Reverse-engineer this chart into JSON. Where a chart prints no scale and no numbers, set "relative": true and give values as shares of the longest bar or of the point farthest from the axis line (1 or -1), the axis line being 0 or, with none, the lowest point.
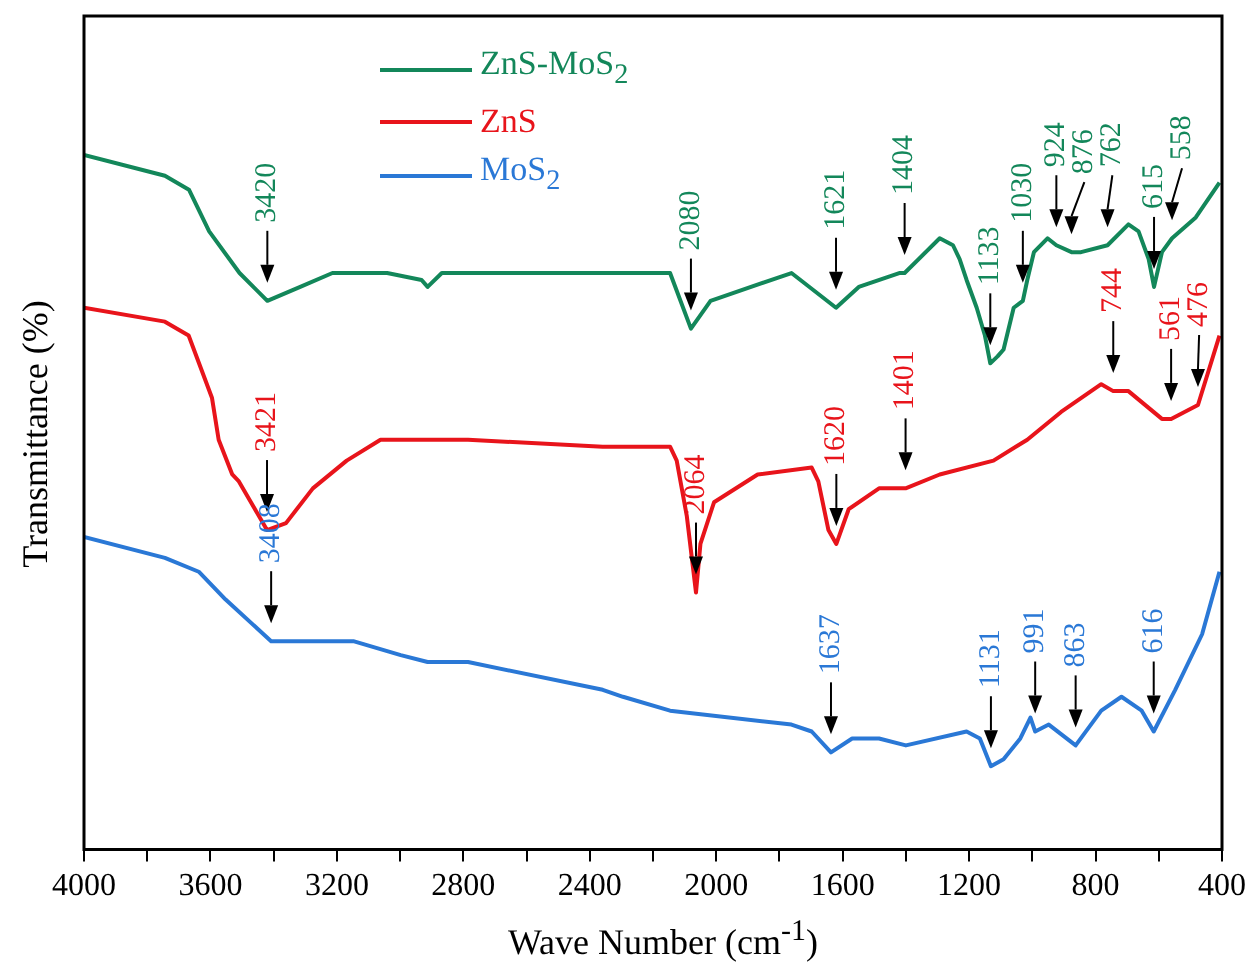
{
  "chart_data": {
    "type": "line",
    "relative": true,
    "xlabel": "Wave Number (cm$^{-1}$)",
    "ylabel": "Transmittance (%)",
    "legend": "top",
    "grid": false,
    "marker": "none",
    "line_style": "solid",
    "xlim": [
      4000,
      400
    ],
    "xticks": [
      4000,
      {
        "value": 3800,
        "label": null
      },
      3600,
      {
        "value": 3400,
        "label": null
      },
      3200,
      {
        "value": 3000,
        "label": null
      },
      2800,
      {
        "value": 2600,
        "label": null
      },
      2400,
      {
        "value": 2200,
        "label": null
      },
      2000,
      {
        "value": 1800,
        "label": null
      },
      1600,
      {
        "value": 1400,
        "label": null
      },
      1200,
      {
        "value": 1000,
        "label": null
      },
      800,
      {
        "value": 600,
        "label": null
      },
      400
    ],
    "series": [
      {
        "name": "ZnS-MoS$_{2}$",
        "color": "#13875a",
        "x": [
          4000,
          3744,
          3668,
          3604,
          3508,
          3420,
          3316,
          3214,
          3041,
          2932,
          2913,
          2868,
          2785,
          2357,
          2146,
          2080,
          2018,
          1762,
          1621,
          1549,
          1421,
          1404,
          1293,
          1251,
          1230,
          1208,
          1176,
          1150,
          1133,
          1110,
          1091,
          1059,
          1030,
          1016,
          995,
          952,
          924,
          876,
          846,
          762,
          696,
          664,
          632,
          615,
          590,
          558,
          483,
          408
        ],
        "values": [
          1.0,
          0.97,
          0.95,
          0.89,
          0.83,
          0.79,
          0.81,
          0.83,
          0.83,
          0.82,
          0.81,
          0.83,
          0.83,
          0.83,
          0.83,
          0.75,
          0.79,
          0.83,
          0.78,
          0.81,
          0.83,
          0.83,
          0.88,
          0.87,
          0.85,
          0.82,
          0.78,
          0.74,
          0.7,
          0.71,
          0.72,
          0.78,
          0.79,
          0.82,
          0.86,
          0.88,
          0.87,
          0.86,
          0.86,
          0.87,
          0.9,
          0.89,
          0.85,
          0.81,
          0.86,
          0.88,
          0.91,
          0.96
        ]
      },
      {
        "name": "ZnS",
        "color": "#e8141b",
        "x": [
          4000,
          3744,
          3669,
          3595,
          3574,
          3531,
          3510,
          3421,
          3361,
          3276,
          3169,
          3062,
          2785,
          2359,
          2295,
          2146,
          2125,
          2093,
          2064,
          2050,
          2007,
          1869,
          1698,
          1677,
          1645,
          1620,
          1581,
          1485,
          1401,
          1293,
          1123,
          1016,
          909,
          782,
          744,
          696,
          590,
          561,
          476,
          408
        ],
        "values": [
          0.78,
          0.76,
          0.74,
          0.65,
          0.59,
          0.54,
          0.53,
          0.46,
          0.47,
          0.52,
          0.56,
          0.59,
          0.59,
          0.58,
          0.58,
          0.58,
          0.56,
          0.48,
          0.37,
          0.44,
          0.5,
          0.54,
          0.55,
          0.53,
          0.46,
          0.44,
          0.49,
          0.52,
          0.52,
          0.54,
          0.56,
          0.59,
          0.63,
          0.67,
          0.66,
          0.66,
          0.62,
          0.62,
          0.64,
          0.74
        ]
      },
      {
        "name": "MoS$_{2}$",
        "color": "#2a78d6",
        "x": [
          4000,
          3744,
          3637,
          3552,
          3408,
          3361,
          3148,
          2998,
          2913,
          2785,
          2359,
          2295,
          2146,
          1762,
          1698,
          1637,
          1570,
          1485,
          1400,
          1208,
          1166,
          1131,
          1091,
          1038,
          1006,
          991,
          948,
          863,
          782,
          718,
          654,
          616,
          548,
          463,
          408
        ],
        "values": [
          0.45,
          0.42,
          0.4,
          0.36,
          0.3,
          0.3,
          0.3,
          0.28,
          0.27,
          0.27,
          0.23,
          0.22,
          0.2,
          0.18,
          0.17,
          0.14,
          0.16,
          0.16,
          0.15,
          0.17,
          0.16,
          0.12,
          0.13,
          0.16,
          0.19,
          0.17,
          0.18,
          0.15,
          0.2,
          0.22,
          0.2,
          0.17,
          0.23,
          0.31,
          0.4
        ]
      }
    ],
    "annotations": [
      {
        "text": "3420",
        "x": 3420,
        "y": 0.79
      },
      {
        "text": "2080",
        "x": 2080,
        "y": 0.75
      },
      {
        "text": "1621",
        "x": 1621,
        "y": 0.78
      },
      {
        "text": "1404",
        "x": 1404,
        "y": 0.83
      },
      {
        "text": "1133",
        "x": 1133,
        "y": 0.7
      },
      {
        "text": "1030",
        "x": 1030,
        "y": 0.79
      },
      {
        "text": "924",
        "x": 924,
        "y": 0.87
      },
      {
        "text": "876",
        "x": 876,
        "y": 0.86
      },
      {
        "text": "762",
        "x": 762,
        "y": 0.87
      },
      {
        "text": "615",
        "x": 615,
        "y": 0.81
      },
      {
        "text": "558",
        "x": 558,
        "y": 0.88
      },
      {
        "text": "3421",
        "x": 3421,
        "y": 0.46
      },
      {
        "text": "2064",
        "x": 2064,
        "y": 0.37
      },
      {
        "text": "1620",
        "x": 1620,
        "y": 0.44
      },
      {
        "text": "1401",
        "x": 1401,
        "y": 0.52
      },
      {
        "text": "744",
        "x": 744,
        "y": 0.66
      },
      {
        "text": "561",
        "x": 561,
        "y": 0.62
      },
      {
        "text": "476",
        "x": 476,
        "y": 0.64
      },
      {
        "text": "3408",
        "x": 3408,
        "y": 0.3
      },
      {
        "text": "1637",
        "x": 1637,
        "y": 0.14
      },
      {
        "text": "1131",
        "x": 1131,
        "y": 0.12
      },
      {
        "text": "991",
        "x": 991,
        "y": 0.17
      },
      {
        "text": "863",
        "x": 863,
        "y": 0.15
      },
      {
        "text": "616",
        "x": 616,
        "y": 0.17
      }
    ]
  }
}
